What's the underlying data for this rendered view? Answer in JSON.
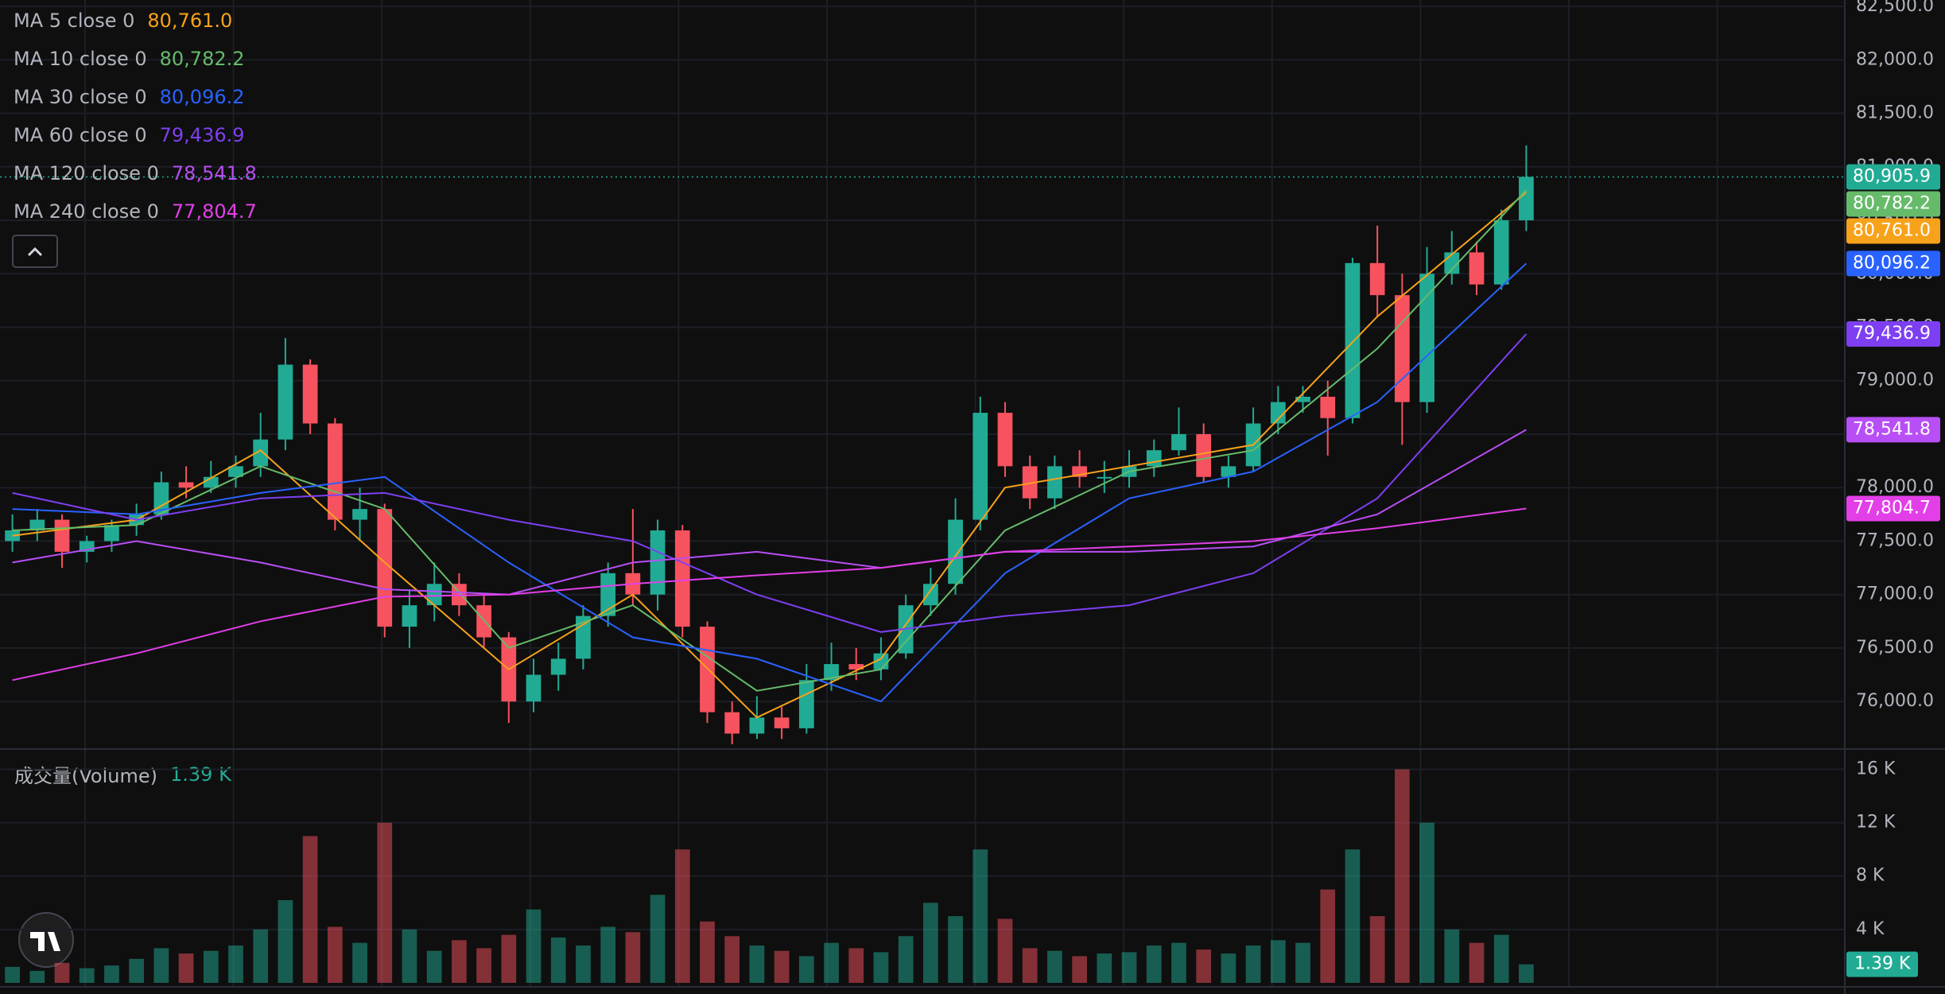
{
  "chart_data": {
    "type": "candlestick",
    "up_color": "#22ab94",
    "down_color": "#f7525f",
    "ylim": [
      75570,
      82560
    ],
    "yticks": [
      {
        "value": 76000,
        "label": "76,000.0"
      },
      {
        "value": 76500,
        "label": "76,500.0"
      },
      {
        "value": 77000,
        "label": "77,000.0"
      },
      {
        "value": 77500,
        "label": "77,500.0"
      },
      {
        "value": 78000,
        "label": "78,000.0"
      },
      {
        "value": 78500,
        "label": "78,500.0"
      },
      {
        "value": 79000,
        "label": "79,000.0"
      },
      {
        "value": 79500,
        "label": "79,500.0"
      },
      {
        "value": 80000,
        "label": "80,000.0"
      },
      {
        "value": 80500,
        "label": "80,500.0"
      },
      {
        "value": 81000,
        "label": "81,000.0"
      },
      {
        "value": 81500,
        "label": "81,500.0"
      },
      {
        "value": 82000,
        "label": "82,000.0"
      },
      {
        "value": 82500,
        "label": "82,500.0"
      }
    ],
    "grid": true,
    "open": [
      77500,
      77600,
      77700,
      77400,
      77500,
      77650,
      77750,
      78050,
      78000,
      78100,
      78200,
      78450,
      79150,
      78600,
      77700,
      77800,
      76700,
      76900,
      77100,
      76900,
      76600,
      76000,
      76250,
      76400,
      76800,
      77200,
      77000,
      77600,
      76700,
      75900,
      75700,
      75850,
      75750,
      76200,
      76350,
      76300,
      76450,
      76900,
      77100,
      77700,
      78700,
      78200,
      77900,
      78200,
      78100,
      78100,
      78200,
      78350,
      78500,
      78100,
      78200,
      78600,
      78800,
      78850,
      78650,
      80100,
      79800,
      78800,
      80000,
      80200,
      79900,
      80500
    ],
    "high": [
      77750,
      77800,
      77750,
      77550,
      77700,
      77850,
      78150,
      78200,
      78250,
      78300,
      78700,
      79400,
      79200,
      78650,
      78000,
      77850,
      77050,
      77300,
      77200,
      77000,
      76650,
      76400,
      76550,
      76900,
      77300,
      77800,
      77700,
      77650,
      76750,
      76000,
      76050,
      75950,
      76350,
      76550,
      76500,
      76600,
      77000,
      77250,
      77900,
      78850,
      78800,
      78300,
      78300,
      78350,
      78250,
      78350,
      78450,
      78750,
      78600,
      78300,
      78750,
      78950,
      78950,
      79000,
      80150,
      80450,
      80000,
      80250,
      80400,
      80300,
      80600,
      81200
    ],
    "low": [
      77400,
      77500,
      77250,
      77300,
      77400,
      77550,
      77700,
      77900,
      77950,
      78000,
      78100,
      78350,
      78500,
      77600,
      77500,
      76600,
      76500,
      76750,
      76800,
      76500,
      75800,
      75900,
      76100,
      76300,
      76700,
      76900,
      76850,
      76600,
      75800,
      75600,
      75650,
      75650,
      75700,
      76100,
      76200,
      76200,
      76400,
      76800,
      77000,
      77600,
      78100,
      77800,
      77800,
      78000,
      77950,
      78000,
      78100,
      78300,
      78050,
      78000,
      78150,
      78500,
      78700,
      78300,
      78600,
      79600,
      78400,
      78700,
      79900,
      79800,
      79850,
      80400
    ],
    "close": [
      77600,
      77700,
      77400,
      77500,
      77650,
      77750,
      78050,
      78000,
      78100,
      78200,
      78450,
      79150,
      78600,
      77700,
      77800,
      76700,
      76900,
      77100,
      76900,
      76600,
      76000,
      76250,
      76400,
      76800,
      77200,
      77000,
      77600,
      76700,
      75900,
      75700,
      75850,
      75750,
      76200,
      76350,
      76300,
      76450,
      76900,
      77100,
      77700,
      78700,
      78200,
      77900,
      78200,
      78100,
      78100,
      78200,
      78350,
      78500,
      78100,
      78200,
      78600,
      78800,
      78850,
      78650,
      80100,
      79800,
      78800,
      80000,
      80200,
      79900,
      80500,
      80905.9
    ],
    "last_price": {
      "value": 80905.9,
      "label": "80,905.9"
    },
    "ma_x": [
      0,
      5,
      10,
      15,
      20,
      25,
      30,
      35,
      40,
      45,
      50,
      55,
      61
    ],
    "series": [
      {
        "name": "MA 5 close 0",
        "color": "#f7a21b",
        "values": [
          77550,
          77700,
          78350,
          77300,
          76300,
          77000,
          75850,
          76400,
          78000,
          78200,
          78400,
          79600,
          80761.0
        ],
        "last_label": "80,761.0"
      },
      {
        "name": "MA 10 close 0",
        "color": "#66bb6a",
        "values": [
          77600,
          77650,
          78200,
          77800,
          76500,
          76900,
          76100,
          76300,
          77600,
          78150,
          78350,
          79300,
          80782.2
        ],
        "last_label": "80,782.2"
      },
      {
        "name": "MA 30 close 0",
        "color": "#2962ff",
        "values": [
          77800,
          77750,
          77950,
          78100,
          77300,
          76600,
          76400,
          76000,
          77200,
          77900,
          78150,
          78800,
          80096.2
        ],
        "last_label": "80,096.2"
      },
      {
        "name": "MA 60 close 0",
        "color": "#7e3ff2",
        "values": [
          77950,
          77700,
          77900,
          77950,
          77700,
          77500,
          77000,
          76650,
          76800,
          76900,
          77200,
          77900,
          79436.9
        ],
        "last_label": "79,436.9"
      },
      {
        "name": "MA 120 close 0",
        "color": "#b84ef5",
        "values": [
          77300,
          77500,
          77300,
          77050,
          77000,
          77300,
          77400,
          77250,
          77400,
          77400,
          77450,
          77750,
          78541.8
        ],
        "last_label": "78,541.8"
      },
      {
        "name": "MA 240 close 0",
        "color": "#e23fe8",
        "values": [
          76200,
          76450,
          76750,
          76980,
          77000,
          77100,
          77180,
          77250,
          77400,
          77450,
          77500,
          77620,
          77804.7
        ],
        "last_label": "77,804.7"
      }
    ],
    "volume": {
      "name": "成交量(Volume)",
      "y2lim": [
        0,
        17400
      ],
      "y2ticks": [
        {
          "value": 4000,
          "label": "4 K"
        },
        {
          "value": 8000,
          "label": "8 K"
        },
        {
          "value": 12000,
          "label": "12 K"
        },
        {
          "value": 16000,
          "label": "16 K"
        }
      ],
      "values": [
        1200,
        900,
        1500,
        1100,
        1300,
        1800,
        2600,
        2200,
        2400,
        2800,
        4000,
        6200,
        11000,
        4200,
        3000,
        12000,
        4000,
        2400,
        3200,
        2600,
        3600,
        5500,
        3400,
        2800,
        4200,
        3800,
        6600,
        10000,
        4600,
        3500,
        2800,
        2400,
        2000,
        3000,
        2600,
        2300,
        3500,
        6000,
        5000,
        10000,
        4800,
        2600,
        2400,
        2000,
        2200,
        2300,
        2800,
        3000,
        2500,
        2200,
        2800,
        3200,
        3000,
        7000,
        10000,
        5000,
        16000,
        12000,
        4000,
        3000,
        3600,
        1390
      ],
      "last_label": "1.39 K"
    }
  }
}
